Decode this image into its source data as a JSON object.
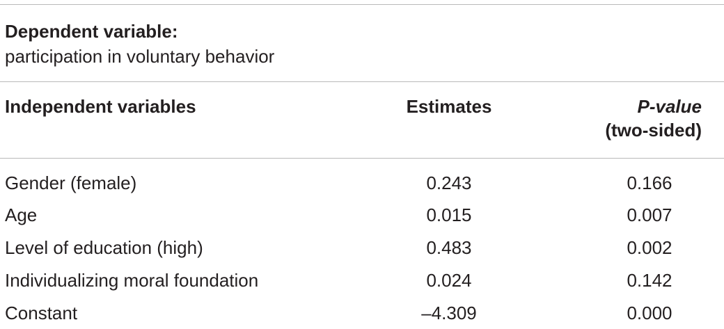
{
  "table": {
    "dependent_label": "Dependent variable:",
    "dependent_value": "participation in voluntary behavior",
    "headers": {
      "independent": "Independent variables",
      "estimates": "Estimates",
      "p_value": "P-value",
      "p_value_sub": "(two-sided)"
    },
    "rows": [
      {
        "name": "Gender (female)",
        "estimate": "0.243",
        "p": "0.166"
      },
      {
        "name": "Age",
        "estimate": "0.015",
        "p": "0.007"
      },
      {
        "name": "Level of education (high)",
        "estimate": "0.483",
        "p": "0.002"
      },
      {
        "name": "Individualizing moral foundation",
        "estimate": "0.024",
        "p": "0.142"
      },
      {
        "name": "Constant",
        "estimate": "–4.309",
        "p": "0.000"
      }
    ]
  }
}
